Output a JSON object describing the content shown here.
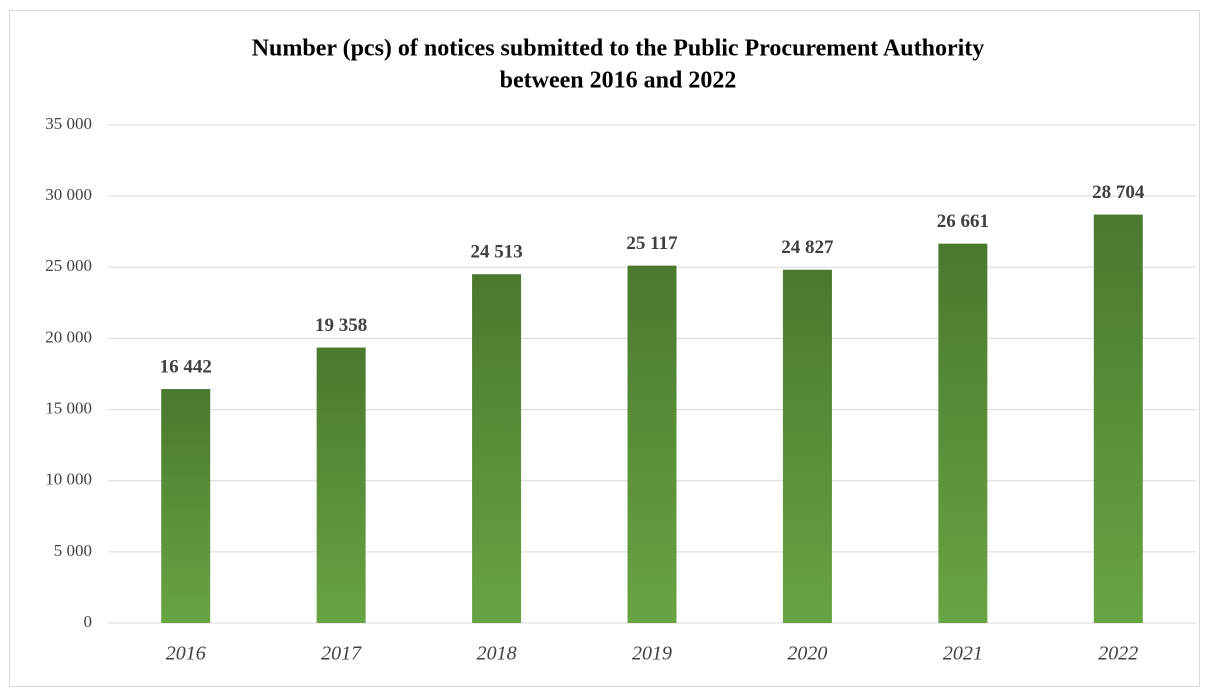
{
  "chart_data": {
    "type": "bar",
    "title": [
      "Number (pcs) of notices submitted to the Public Procurement Authority",
      "between 2016 and 2022"
    ],
    "categories": [
      "2016",
      "2017",
      "2018",
      "2019",
      "2020",
      "2021",
      "2022"
    ],
    "values": [
      16442,
      19358,
      24513,
      25117,
      24827,
      26661,
      28704
    ],
    "value_labels": [
      "16 442",
      "19 358",
      "24 513",
      "25 117",
      "24 827",
      "26 661",
      "28 704"
    ],
    "color_top": "#4a792e",
    "color_bottom": "#68a443",
    "ylim": [
      0,
      35000
    ],
    "yticks": [
      0,
      {
        "value": 5000,
        "label": "5 000"
      },
      {
        "value": 10000,
        "label": "10 000"
      },
      {
        "value": 15000,
        "label": "15 000"
      },
      {
        "value": 20000,
        "label": "20 000"
      },
      {
        "value": 25000,
        "label": "25 000"
      },
      {
        "value": 30000,
        "label": "30 000"
      },
      {
        "value": 35000,
        "label": "35 000"
      }
    ],
    "grid": true
  }
}
